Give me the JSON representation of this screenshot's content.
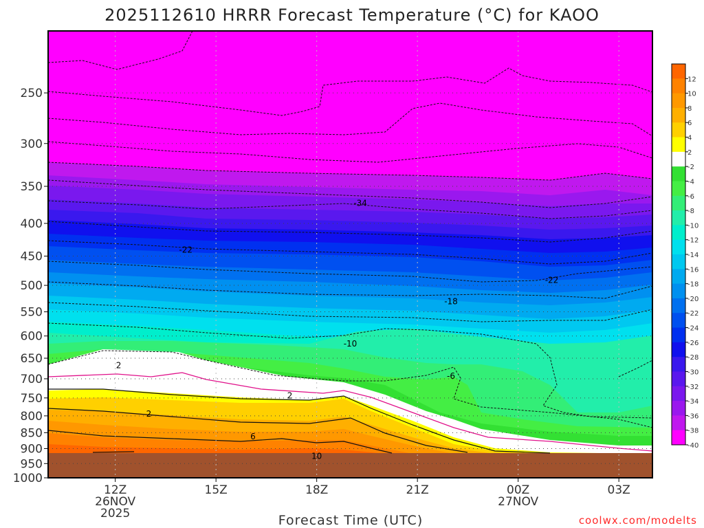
{
  "title": "2025112610 HRRR Forecast Temperature (°C) for KAOO",
  "watermark": "coolwx.com/modelts",
  "chart_data": {
    "type": "heatmap",
    "title": "2025112610 HRRR Forecast Temperature (°C) for KAOO",
    "xlabel": "Forecast Time (UTC)",
    "ylabel": "",
    "x_range_hours": [
      10,
      28
    ],
    "y_range_hpa": [
      200,
      1000
    ],
    "y_scale": "log",
    "y_ticks": [
      250,
      300,
      350,
      400,
      450,
      500,
      550,
      600,
      650,
      700,
      750,
      800,
      850,
      900,
      950,
      1000
    ],
    "x_ticks": [
      {
        "hour": 12,
        "lines": [
          "12Z",
          "26NOV",
          "2025"
        ]
      },
      {
        "hour": 15,
        "lines": [
          "15Z"
        ]
      },
      {
        "hour": 18,
        "lines": [
          "18Z"
        ]
      },
      {
        "hour": 21,
        "lines": [
          "21Z"
        ]
      },
      {
        "hour": 24,
        "lines": [
          "00Z",
          "27NOV"
        ]
      },
      {
        "hour": 27,
        "lines": [
          "03Z"
        ]
      }
    ],
    "colorbar": {
      "levels": [
        12,
        10,
        8,
        6,
        4,
        2,
        -2,
        -4,
        -6,
        -8,
        -10,
        -12,
        -14,
        -16,
        -18,
        -20,
        -22,
        -24,
        -26,
        -28,
        -30,
        -32,
        -34,
        -36,
        -38,
        -40
      ],
      "colors": [
        "#ff6600",
        "#ff8200",
        "#ff9800",
        "#ffaf00",
        "#ffd000",
        "#ffff00",
        "#ffffff",
        "#33e033",
        "#44ee44",
        "#33ee77",
        "#22eeaa",
        "#00eecc",
        "#00e0ee",
        "#00c8f0",
        "#00aaf0",
        "#0090f0",
        "#0070f0",
        "#0050f0",
        "#0030f0",
        "#1010ee",
        "#3a18ee",
        "#5a18ee",
        "#7a18ee",
        "#9a18ee",
        "#c018ee",
        "#ff00ff"
      ]
    },
    "ground_pressure_hpa": 960,
    "contour_labels": [
      {
        "text": "-34",
        "hour": 19.3,
        "p": 372
      },
      {
        "text": "-22",
        "hour": 14.1,
        "p": 440
      },
      {
        "text": "-22",
        "hour": 25.0,
        "p": 491
      },
      {
        "text": "-18",
        "hour": 22.0,
        "p": 530
      },
      {
        "text": "-10",
        "hour": 19.0,
        "p": 617
      },
      {
        "text": "-6",
        "hour": 22.0,
        "p": 693
      },
      {
        "text": "2",
        "hour": 12.1,
        "p": 667
      },
      {
        "text": "2",
        "hour": 17.2,
        "p": 744
      },
      {
        "text": "2",
        "hour": 13.0,
        "p": 794
      },
      {
        "text": "6",
        "hour": 16.1,
        "p": 862
      },
      {
        "text": "10",
        "hour": 18.0,
        "p": 925
      }
    ]
  }
}
